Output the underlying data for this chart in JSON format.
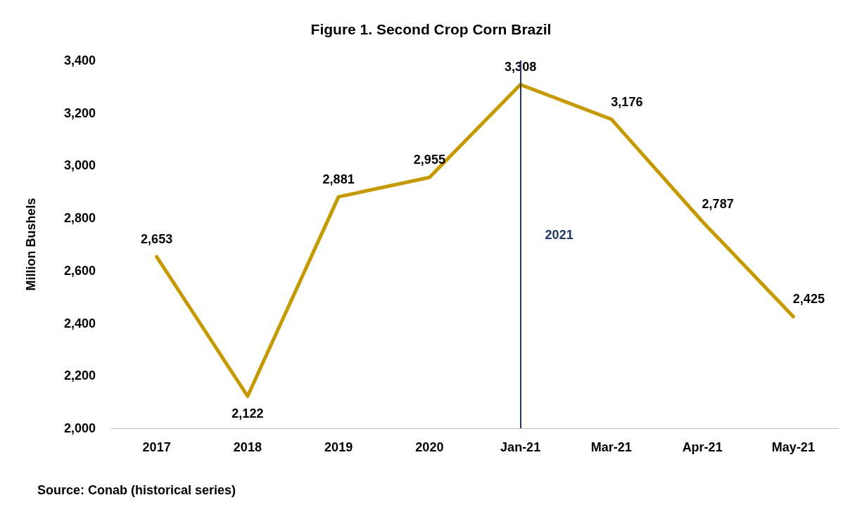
{
  "chart_data": {
    "type": "line",
    "title": "Figure 1. Second Crop Corn Brazil",
    "ylabel": "Million Bushels",
    "categories": [
      "2017",
      "2018",
      "2019",
      "2020",
      "Jan-21",
      "Mar-21",
      "Apr-21",
      "May-21"
    ],
    "series": [
      {
        "color": "#c49a00",
        "values": [
          2653,
          2122,
          2881,
          2955,
          3308,
          3176,
          2787,
          2425
        ],
        "value_labels": [
          "2,653",
          "2,122",
          "2,881",
          "2,955",
          "3,308",
          "3,176",
          "2,787",
          "2,425"
        ]
      }
    ],
    "ylim": [
      2000,
      3400
    ],
    "yticks": [
      {
        "value": 2000,
        "label": "2,000"
      },
      {
        "value": 2200,
        "label": "2,200"
      },
      {
        "value": 2400,
        "label": "2,400"
      },
      {
        "value": 2600,
        "label": "2,600"
      },
      {
        "value": 2800,
        "label": "2,800"
      },
      {
        "value": 3000,
        "label": "3,000"
      },
      {
        "value": 3200,
        "label": "3,200"
      },
      {
        "value": 3400,
        "label": "3,400"
      }
    ],
    "ref_lines": [
      {
        "axis": "x",
        "value": "Jan-21",
        "label": "2021",
        "color": "#1f3864"
      }
    ],
    "grid": false,
    "marker": "none",
    "line_style": "solid",
    "annotations": [
      "Source: Conab (historical series)"
    ]
  }
}
